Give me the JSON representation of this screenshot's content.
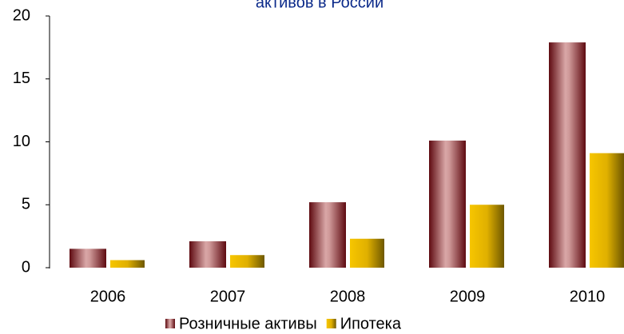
{
  "chart_data": {
    "type": "bar",
    "title": "активов в России",
    "categories": [
      "2006",
      "2007",
      "2008",
      "2009",
      "2010"
    ],
    "series": [
      {
        "name": "Розничные активы",
        "color": "#8b1a1f",
        "values": [
          1.5,
          2.1,
          5.2,
          10.1,
          17.9
        ]
      },
      {
        "name": "Ипотека",
        "color": "#e6b800",
        "values": [
          0.6,
          1.0,
          2.3,
          5.0,
          9.1
        ]
      }
    ],
    "ylim": [
      0,
      20
    ],
    "yticks": [
      0,
      5,
      10,
      15,
      20
    ],
    "grid": false,
    "legend": "bottom"
  }
}
